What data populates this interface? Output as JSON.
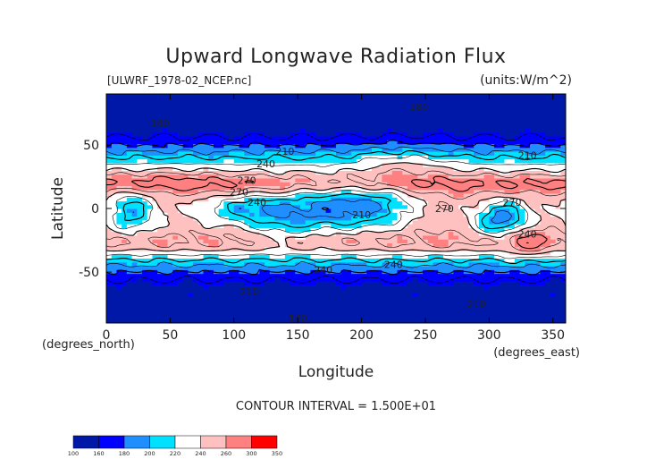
{
  "chart_data": {
    "type": "heatmap",
    "title": "Upward Longwave Radiation Flux",
    "source_label": "[ULWRF_1978-02_NCEP.nc]",
    "units_label": "(units:W/m^2)",
    "xlabel": "Longitude",
    "ylabel": "Latitude",
    "x_unit_label": "(degrees_east)",
    "y_unit_label": "(degrees_north)",
    "xlim": [
      0,
      360
    ],
    "ylim": [
      -90,
      90
    ],
    "x_ticks": [
      0,
      50,
      100,
      150,
      200,
      250,
      300,
      350
    ],
    "y_ticks": [
      -50,
      0,
      50
    ],
    "contour_interval_text": "CONTOUR INTERVAL = 1.500E+01",
    "contour_labels": [
      {
        "text": "180",
        "lon": 42,
        "lat": 67
      },
      {
        "text": "180",
        "lon": 245,
        "lat": 80
      },
      {
        "text": "180",
        "lon": 150,
        "lat": -86
      },
      {
        "text": "210",
        "lon": 140,
        "lat": 45
      },
      {
        "text": "210",
        "lon": 330,
        "lat": 42
      },
      {
        "text": "210",
        "lon": 112,
        "lat": -65
      },
      {
        "text": "210",
        "lon": 200,
        "lat": -5
      },
      {
        "text": "210",
        "lon": 290,
        "lat": -75
      },
      {
        "text": "240",
        "lon": 125,
        "lat": 35
      },
      {
        "text": "240",
        "lon": 118,
        "lat": 5
      },
      {
        "text": "240",
        "lon": 170,
        "lat": -48
      },
      {
        "text": "240",
        "lon": 225,
        "lat": -44
      },
      {
        "text": "240",
        "lon": 330,
        "lat": -20
      },
      {
        "text": "270",
        "lon": 110,
        "lat": 22
      },
      {
        "text": "270",
        "lon": 104,
        "lat": 13
      },
      {
        "text": "270",
        "lon": 265,
        "lat": 0
      },
      {
        "text": "270",
        "lon": 318,
        "lat": 5
      }
    ],
    "colorbar": {
      "levels": [
        100,
        160,
        180,
        200,
        220,
        240,
        260,
        300,
        350
      ],
      "colors": [
        "#0018a8",
        "#0000ff",
        "#1f8fff",
        "#00e0ff",
        "#ffffff",
        "#ffc0c0",
        "#ff8080",
        "#ff0000"
      ]
    }
  }
}
